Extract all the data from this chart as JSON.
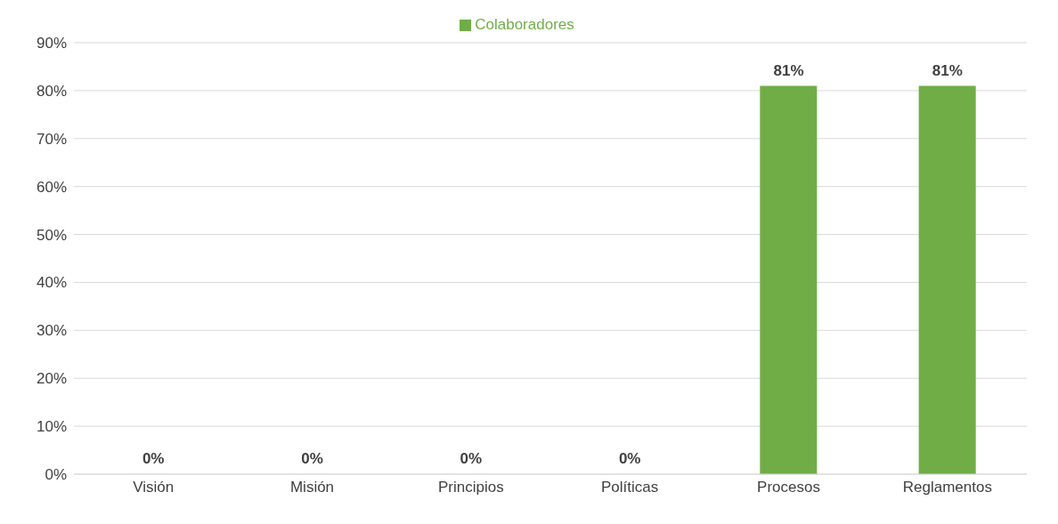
{
  "chart_data": {
    "type": "bar",
    "categories": [
      "Visión",
      "Misión",
      "Principios",
      "Políticas",
      "Procesos",
      "Reglamentos"
    ],
    "series": [
      {
        "name": "Colaboradores",
        "color": "#70ad47",
        "values": [
          0,
          0,
          0,
          0,
          81,
          81
        ]
      }
    ],
    "value_labels": [
      "0%",
      "0%",
      "0%",
      "0%",
      "81%",
      "81%"
    ],
    "ylim": [
      0,
      90
    ],
    "yticks": [
      {
        "value": 0,
        "label": "0%"
      },
      {
        "value": 10,
        "label": "10%"
      },
      {
        "value": 20,
        "label": "20%"
      },
      {
        "value": 30,
        "label": "30%"
      },
      {
        "value": 40,
        "label": "40%"
      },
      {
        "value": 50,
        "label": "50%"
      },
      {
        "value": 60,
        "label": "60%"
      },
      {
        "value": 70,
        "label": "70%"
      },
      {
        "value": 80,
        "label": "80%"
      },
      {
        "value": 90,
        "label": "90%"
      }
    ],
    "grid": "y",
    "legend": "top"
  }
}
